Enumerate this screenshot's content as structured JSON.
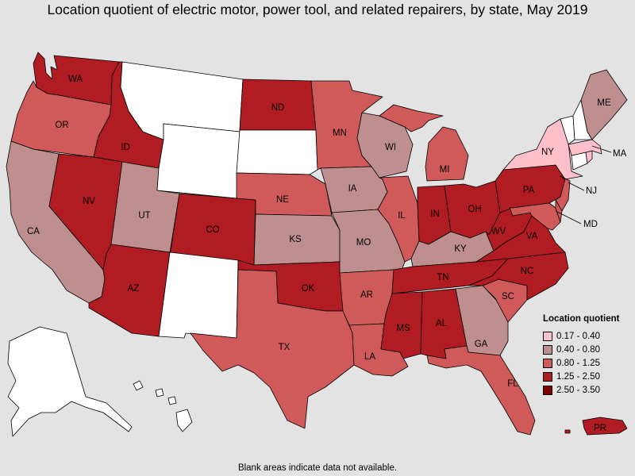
{
  "title": "Location quotient of electric motor, power tool, and related repairers, by state, May 2019",
  "footnote": "Blank areas indicate data not available.",
  "legend": {
    "title": "Location quotient",
    "items": [
      {
        "label": "0.17 - 0.40",
        "color": "#ffc0cb"
      },
      {
        "label": "0.40 - 0.80",
        "color": "#bf8f8f"
      },
      {
        "label": "0.80 - 1.25",
        "color": "#d05a5a"
      },
      {
        "label": "1.25 - 2.50",
        "color": "#b01c22"
      },
      {
        "label": "2.50 - 3.50",
        "color": "#800000"
      }
    ]
  },
  "colors": {
    "c1": "#ffc0cb",
    "c2": "#bf8f8f",
    "c3": "#d05a5a",
    "c4": "#b01c22",
    "c5": "#800000",
    "na": "#ffffff"
  },
  "states": {
    "WA": {
      "label": "WA",
      "class": "c4"
    },
    "OR": {
      "label": "OR",
      "class": "c3"
    },
    "CA": {
      "label": "CA",
      "class": "c2"
    },
    "ID": {
      "label": "ID",
      "class": "c4"
    },
    "NV": {
      "label": "NV",
      "class": "c4"
    },
    "UT": {
      "label": "UT",
      "class": "c2"
    },
    "AZ": {
      "label": "AZ",
      "class": "c4"
    },
    "MT": {
      "label": "",
      "class": "na"
    },
    "WY": {
      "label": "",
      "class": "na"
    },
    "CO": {
      "label": "CO",
      "class": "c4"
    },
    "NM": {
      "label": "",
      "class": "na"
    },
    "ND": {
      "label": "ND",
      "class": "c4"
    },
    "SD": {
      "label": "",
      "class": "na"
    },
    "NE": {
      "label": "NE",
      "class": "c3"
    },
    "KS": {
      "label": "KS",
      "class": "c2"
    },
    "OK": {
      "label": "OK",
      "class": "c4"
    },
    "TX": {
      "label": "TX",
      "class": "c3"
    },
    "MN": {
      "label": "MN",
      "class": "c3"
    },
    "IA": {
      "label": "IA",
      "class": "c2"
    },
    "MO": {
      "label": "MO",
      "class": "c2"
    },
    "AR": {
      "label": "AR",
      "class": "c3"
    },
    "LA": {
      "label": "LA",
      "class": "c3"
    },
    "WI": {
      "label": "WI",
      "class": "c2"
    },
    "IL": {
      "label": "IL",
      "class": "c3"
    },
    "MI": {
      "label": "MI",
      "class": "c3"
    },
    "IN": {
      "label": "IN",
      "class": "c4"
    },
    "OH": {
      "label": "OH",
      "class": "c4"
    },
    "KY": {
      "label": "KY",
      "class": "c2"
    },
    "TN": {
      "label": "TN",
      "class": "c4"
    },
    "MS": {
      "label": "MS",
      "class": "c4"
    },
    "AL": {
      "label": "AL",
      "class": "c4"
    },
    "GA": {
      "label": "GA",
      "class": "c2"
    },
    "FL": {
      "label": "FL",
      "class": "c3"
    },
    "SC": {
      "label": "SC",
      "class": "c3"
    },
    "NC": {
      "label": "NC",
      "class": "c4"
    },
    "VA": {
      "label": "VA",
      "class": "c4"
    },
    "WV": {
      "label": "WV",
      "class": "c4"
    },
    "PA": {
      "label": "PA",
      "class": "c4"
    },
    "NY": {
      "label": "NY",
      "class": "c1"
    },
    "NJ": {
      "label": "NJ",
      "class": "c3"
    },
    "MD": {
      "label": "MD",
      "class": "c3"
    },
    "DE": {
      "label": "",
      "class": "c3"
    },
    "CT": {
      "label": "",
      "class": "na"
    },
    "RI": {
      "label": "",
      "class": "c1"
    },
    "MA": {
      "label": "MA",
      "class": "c1"
    },
    "VT": {
      "label": "",
      "class": "na"
    },
    "NH": {
      "label": "",
      "class": "na"
    },
    "ME": {
      "label": "ME",
      "class": "c2"
    },
    "AK": {
      "label": "",
      "class": "na"
    },
    "HI": {
      "label": "",
      "class": "na"
    },
    "PR": {
      "label": "PR",
      "class": "c4"
    }
  }
}
